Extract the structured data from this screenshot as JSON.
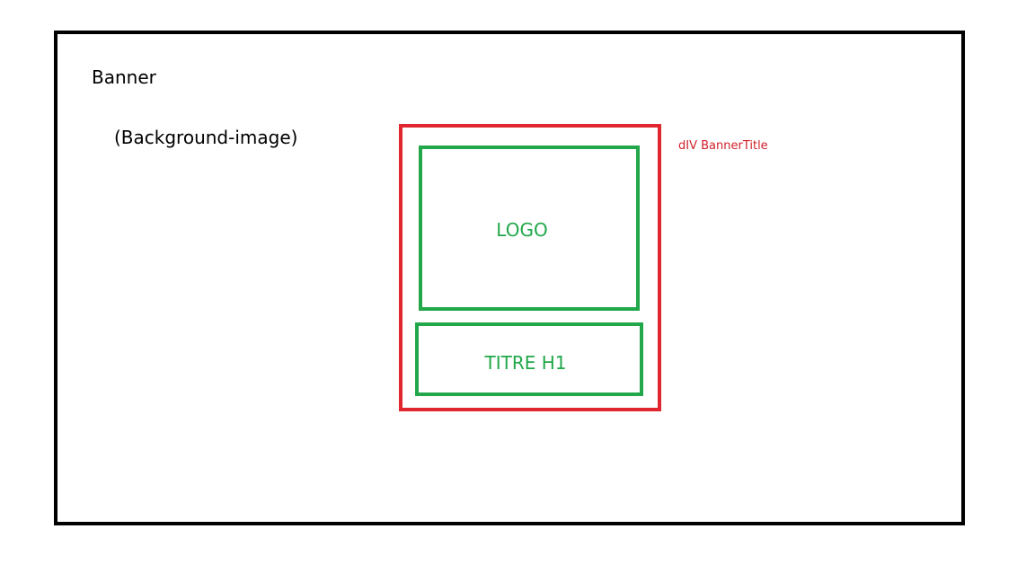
{
  "banner": {
    "label": "Banner",
    "background_label": "(Background-image)"
  },
  "banner_title": {
    "label": "dIV BannerTitle",
    "logo_label": "LOGO",
    "heading_label": "TITRE H1"
  },
  "colors": {
    "banner_border": "#000000",
    "container_border": "#e0262e",
    "child_border": "#22a84a",
    "container_label": "#d0202a"
  }
}
